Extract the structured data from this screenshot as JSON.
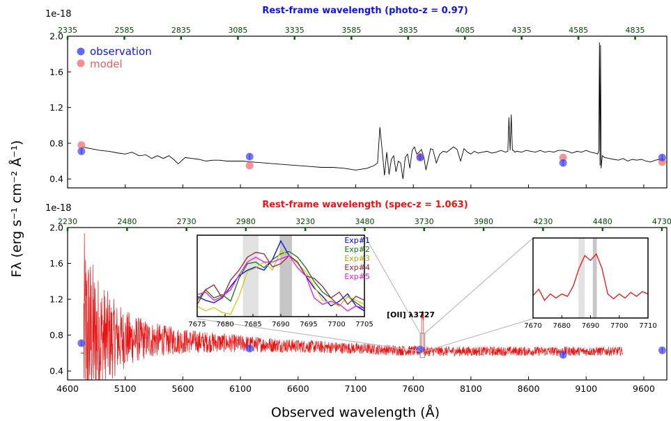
{
  "figure": {
    "ylabel": "Fλ (erg s⁻¹ cm⁻² Å⁻¹)",
    "xlabel": "Observed wavelength (Å)",
    "colors": {
      "observation": "#3f3ff5",
      "model": "#f98080",
      "red": "#ee1111",
      "blue": "#1111ee",
      "green_tick": "#006400"
    }
  },
  "chart_data": [
    {
      "type": "line",
      "panel": "top",
      "title": "Rest-frame wavelength (photo-z = 0.97)",
      "title_color": "#1111ee",
      "exponent_label": "1e-18",
      "xlim": [
        4600,
        9800
      ],
      "ylim": [
        0.3,
        2.0
      ],
      "x_ticks": [
        4600,
        5100,
        5600,
        6100,
        6600,
        7100,
        7600,
        8100,
        8600,
        9100,
        9600
      ],
      "y_ticks": [
        0.4,
        0.8,
        1.2,
        1.6,
        2.0
      ],
      "y_tick_labels": [
        "0.4",
        "0.8",
        "1.2",
        "1.6",
        "2.0"
      ],
      "top_axis_ticks": [
        "2335",
        "2585",
        "2835",
        "3085",
        "3335",
        "3585",
        "3835",
        "4085",
        "4335",
        "4585",
        "4835"
      ],
      "top_axis_tick_x": [
        4600,
        5093,
        5585,
        6078,
        6570,
        7063,
        7555,
        8048,
        8540,
        9033,
        9525
      ],
      "legend": {
        "placement": "top-left",
        "entries": [
          "observation",
          "model"
        ]
      },
      "observation": {
        "x": [
          4720,
          6180,
          7660,
          8900,
          9760
        ],
        "y": [
          0.71,
          0.65,
          0.64,
          0.58,
          0.64
        ],
        "yerr": [
          0.03,
          0.03,
          0.03,
          0.03,
          0.03
        ]
      },
      "model": {
        "x": [
          4720,
          6180,
          7660,
          8900,
          9760
        ],
        "y": [
          0.78,
          0.55,
          0.65,
          0.64,
          0.59
        ]
      },
      "spectrum": {
        "x": [
          4720,
          4800,
          4880,
          4960,
          5040,
          5100,
          5160,
          5220,
          5280,
          5330,
          5380,
          5430,
          5480,
          5520,
          5560,
          5620,
          5680,
          5740,
          5800,
          5860,
          5920,
          5980,
          6040,
          6120,
          6200,
          6300,
          6400,
          6500,
          6600,
          6700,
          6800,
          6900,
          7000,
          7100,
          7200,
          7260,
          7290,
          7310,
          7330,
          7350,
          7360,
          7370,
          7390,
          7410,
          7430,
          7450,
          7470,
          7490,
          7510,
          7530,
          7550,
          7570,
          7590,
          7610,
          7630,
          7650,
          7670,
          7690,
          7710,
          7730,
          7750,
          7770,
          7800,
          7830,
          7860,
          7890,
          7920,
          7950,
          7980,
          8010,
          8040,
          8070,
          8100,
          8130,
          8160,
          8200,
          8240,
          8280,
          8320,
          8360,
          8400,
          8420,
          8430,
          8440,
          8450,
          8460,
          8470,
          8480,
          8500,
          8540,
          8580,
          8620,
          8660,
          8700,
          8740,
          8780,
          8820,
          8860,
          8900,
          8940,
          8980,
          9020,
          9060,
          9100,
          9140,
          9180,
          9200,
          9210,
          9215,
          9220,
          9225,
          9230,
          9240,
          9260,
          9300,
          9340,
          9380,
          9420,
          9460,
          9500,
          9540,
          9580,
          9620,
          9660,
          9700,
          9740,
          9770
        ],
        "y": [
          0.76,
          0.74,
          0.72,
          0.71,
          0.69,
          0.68,
          0.7,
          0.66,
          0.67,
          0.63,
          0.66,
          0.63,
          0.66,
          0.62,
          0.57,
          0.64,
          0.63,
          0.62,
          0.6,
          0.61,
          0.61,
          0.6,
          0.6,
          0.6,
          0.59,
          0.58,
          0.57,
          0.56,
          0.55,
          0.54,
          0.53,
          0.53,
          0.52,
          0.5,
          0.52,
          0.55,
          0.58,
          0.98,
          0.72,
          0.44,
          0.58,
          0.7,
          0.45,
          0.62,
          0.66,
          0.48,
          0.6,
          0.58,
          0.4,
          0.64,
          0.68,
          0.52,
          0.72,
          0.76,
          0.68,
          0.7,
          0.73,
          0.66,
          0.5,
          0.62,
          0.74,
          0.73,
          0.58,
          0.68,
          0.71,
          0.7,
          0.73,
          0.76,
          0.73,
          0.6,
          0.74,
          0.7,
          0.68,
          0.71,
          0.69,
          0.7,
          0.71,
          0.69,
          0.7,
          0.72,
          0.7,
          0.71,
          1.09,
          0.72,
          1.12,
          0.72,
          0.72,
          0.7,
          0.71,
          0.7,
          0.72,
          0.71,
          0.7,
          0.72,
          0.7,
          0.71,
          0.7,
          0.72,
          0.72,
          0.71,
          0.69,
          0.71,
          0.7,
          0.72,
          0.7,
          0.69,
          0.68,
          0.72,
          1.93,
          0.55,
          1.9,
          0.52,
          0.66,
          0.64,
          0.63,
          0.62,
          0.61,
          0.63,
          0.6,
          0.62,
          0.61,
          0.62,
          0.6,
          0.59,
          0.61,
          0.62,
          0.6
        ]
      }
    },
    {
      "type": "line",
      "panel": "bottom",
      "title": "Rest-frame wavelength (spec-z = 1.063)",
      "title_color": "#ee1111",
      "exponent_label": "1e-18",
      "xlim": [
        4600,
        9800
      ],
      "ylim": [
        0.3,
        2.0
      ],
      "x_ticks": [
        4600,
        5100,
        5600,
        6100,
        6600,
        7100,
        7600,
        8100,
        8600,
        9100,
        9600
      ],
      "x_tick_labels": [
        "4600",
        "5100",
        "5600",
        "6100",
        "6600",
        "7100",
        "7600",
        "8100",
        "8600",
        "9100",
        "9600"
      ],
      "y_ticks": [
        0.4,
        0.8,
        1.2,
        1.6,
        2.0
      ],
      "y_tick_labels": [
        "0.4",
        "0.8",
        "1.2",
        "1.6",
        "2.0"
      ],
      "top_axis_ticks": [
        "2230",
        "2480",
        "2730",
        "2980",
        "3230",
        "3480",
        "3730",
        "3980",
        "4230",
        "4480",
        "4730"
      ],
      "top_axis_tick_x": [
        4600,
        5116,
        5632,
        6147,
        6663,
        7179,
        7694,
        8210,
        8726,
        9242,
        9757
      ],
      "observation": {
        "x": [
          4720,
          6180,
          7660,
          8900,
          9760
        ],
        "y": [
          0.71,
          0.65,
          0.64,
          0.58,
          0.63
        ],
        "yerr": [
          0.03,
          0.03,
          0.03,
          0.03,
          0.03
        ]
      },
      "noise_spectrum": {
        "x_range": [
          4740,
          9420
        ],
        "level_start": 0.78,
        "level_end": 0.62,
        "spike_max": 2.0
      },
      "annotation": "[OII] λ3727",
      "marker_box_x": [
        7660,
        7700
      ]
    },
    {
      "type": "line",
      "panel": "inset-left",
      "xlim": [
        7675,
        7705
      ],
      "x_ticks": [
        7675,
        7680,
        7685,
        7690,
        7695,
        7700,
        7705
      ],
      "x_tick_labels": [
        "7675",
        "7680",
        "7685",
        "7690",
        "7695",
        "7700",
        "7705"
      ],
      "legend": {
        "placement": "top-right",
        "entries": [
          "Exp#1",
          "Exp#2",
          "Exp#3",
          "Exp#4",
          "Exp#5"
        ]
      },
      "shaded_bands": [
        [
          7683.2,
          7686.0
        ],
        [
          7689.8,
          7692.0
        ]
      ],
      "x": [
        7675,
        7676.5,
        7678,
        7679.5,
        7681,
        7682.5,
        7684,
        7685.5,
        7687,
        7688.5,
        7690,
        7691.5,
        7693,
        7694.5,
        7696,
        7697.5,
        7699,
        7700.5,
        7702,
        7703.5,
        7705
      ],
      "series": [
        {
          "name": "Exp#1",
          "color": "#0000ee",
          "values": [
            0.3,
            0.25,
            0.22,
            0.28,
            0.42,
            0.55,
            0.62,
            0.66,
            0.62,
            0.75,
            0.98,
            0.8,
            0.72,
            0.55,
            0.4,
            0.3,
            0.18,
            0.24,
            0.33,
            0.18,
            0.12
          ]
        },
        {
          "name": "Exp#2",
          "color": "#117711",
          "values": [
            0.25,
            0.38,
            0.28,
            0.32,
            0.24,
            0.52,
            0.7,
            0.72,
            0.65,
            0.75,
            0.82,
            0.85,
            0.78,
            0.65,
            0.48,
            0.35,
            0.28,
            0.18,
            0.3,
            0.22,
            0.15
          ]
        },
        {
          "name": "Exp#3",
          "color": "#cccc11",
          "values": [
            0.18,
            0.12,
            0.16,
            0.1,
            0.08,
            0.3,
            0.6,
            0.65,
            0.72,
            0.62,
            0.86,
            0.8,
            0.7,
            0.6,
            0.42,
            0.25,
            0.22,
            0.18,
            0.3,
            0.25,
            0.2
          ]
        },
        {
          "name": "Exp#4",
          "color": "#992233",
          "values": [
            0.2,
            0.38,
            0.44,
            0.28,
            0.5,
            0.62,
            0.78,
            0.84,
            0.82,
            0.66,
            0.7,
            0.8,
            0.72,
            0.55,
            0.52,
            0.42,
            0.28,
            0.35,
            0.2,
            0.3,
            0.25
          ]
        },
        {
          "name": "Exp#5",
          "color": "#ee11ee",
          "values": [
            0.32,
            0.35,
            0.25,
            0.3,
            0.38,
            0.56,
            0.72,
            0.78,
            0.72,
            0.72,
            0.76,
            0.8,
            0.65,
            0.55,
            0.28,
            0.2,
            0.24,
            0.2,
            0.12,
            0.18,
            0.15
          ]
        }
      ]
    },
    {
      "type": "line",
      "panel": "inset-right",
      "xlim": [
        7670,
        7710
      ],
      "x_ticks": [
        7670,
        7680,
        7690,
        7700,
        7710
      ],
      "x_tick_labels": [
        "7670",
        "7680",
        "7690",
        "7700",
        "7710"
      ],
      "shaded_bands": [
        [
          7685.8,
          7688.0
        ],
        [
          7690.8,
          7692.2
        ]
      ],
      "x": [
        7670,
        7672,
        7674,
        7676,
        7678,
        7680,
        7682,
        7684,
        7686,
        7688,
        7690,
        7692,
        7694,
        7696,
        7698,
        7700,
        7702,
        7704,
        7706,
        7708,
        7710
      ],
      "series": [
        {
          "name": "",
          "color": "#ee1111",
          "values": [
            0.28,
            0.36,
            0.22,
            0.3,
            0.25,
            0.3,
            0.27,
            0.4,
            0.62,
            0.78,
            0.72,
            0.8,
            0.62,
            0.3,
            0.24,
            0.3,
            0.25,
            0.32,
            0.27,
            0.33,
            0.3
          ]
        }
      ]
    }
  ]
}
